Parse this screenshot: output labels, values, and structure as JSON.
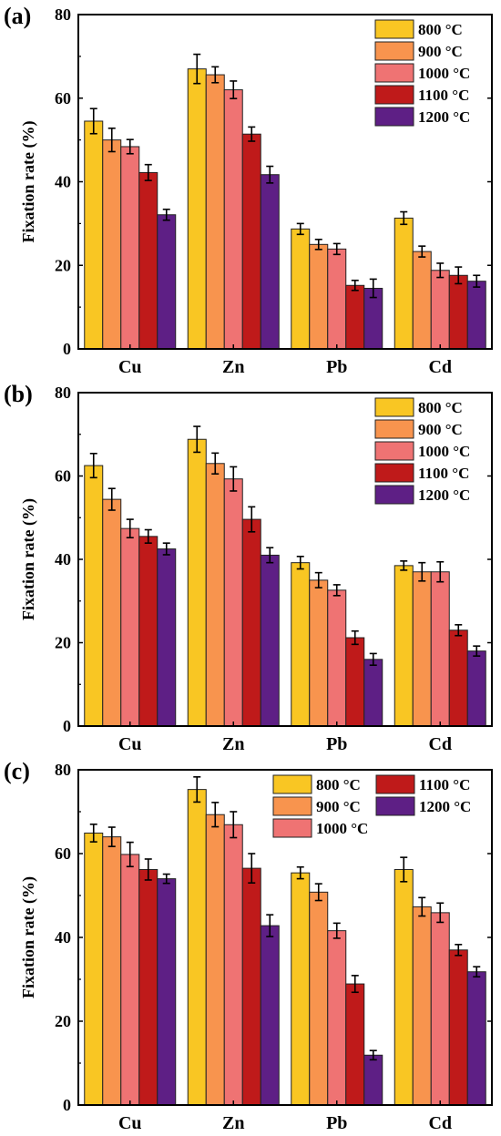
{
  "chart_data": [
    {
      "panel": "(a)",
      "type": "bar",
      "categories": [
        "Cu",
        "Zn",
        "Pb",
        "Cd"
      ],
      "ylabel": "Fixation rate (%)",
      "ylim": [
        0,
        80
      ],
      "yticks": [
        "0",
        "20",
        "40",
        "60",
        "80"
      ],
      "legend_position": "top-right",
      "series": [
        {
          "name": "800 °C",
          "color": "#F9C623",
          "values": [
            54.5,
            67.0,
            28.7,
            31.3
          ],
          "errors": [
            3.0,
            3.5,
            1.3,
            1.5
          ]
        },
        {
          "name": "900 °C",
          "color": "#F8944E",
          "values": [
            50.0,
            65.6,
            25.0,
            23.3
          ],
          "errors": [
            2.8,
            1.9,
            1.2,
            1.3
          ]
        },
        {
          "name": "1000 °C",
          "color": "#EF7373",
          "values": [
            48.4,
            62.0,
            23.9,
            18.8
          ],
          "errors": [
            1.7,
            2.1,
            1.3,
            1.7
          ]
        },
        {
          "name": "1100 °C",
          "color": "#BF1A1A",
          "values": [
            42.2,
            51.4,
            15.2,
            17.6
          ],
          "errors": [
            1.9,
            1.7,
            1.2,
            2.0
          ]
        },
        {
          "name": "1200 °C",
          "color": "#5E1F85",
          "values": [
            32.1,
            41.7,
            14.5,
            16.2
          ],
          "errors": [
            1.3,
            2.0,
            2.2,
            1.4
          ]
        }
      ]
    },
    {
      "panel": "(b)",
      "type": "bar",
      "categories": [
        "Cu",
        "Zn",
        "Pb",
        "Cd"
      ],
      "ylabel": "Fixation rate (%)",
      "ylim": [
        0,
        80
      ],
      "yticks": [
        "0",
        "20",
        "40",
        "60",
        "80"
      ],
      "legend_position": "top-right",
      "series": [
        {
          "name": "800 °C",
          "color": "#F9C623",
          "values": [
            62.5,
            68.8,
            39.2,
            38.5
          ],
          "errors": [
            2.9,
            3.1,
            1.5,
            1.1
          ]
        },
        {
          "name": "900 °C",
          "color": "#F8944E",
          "values": [
            54.4,
            63.0,
            35.0,
            37.0
          ],
          "errors": [
            2.6,
            2.5,
            1.8,
            2.2
          ]
        },
        {
          "name": "1000 °C",
          "color": "#EF7373",
          "values": [
            47.4,
            59.3,
            32.6,
            37.0
          ],
          "errors": [
            2.2,
            2.9,
            1.3,
            2.4
          ]
        },
        {
          "name": "1100 °C",
          "color": "#BF1A1A",
          "values": [
            45.5,
            49.6,
            21.2,
            23.0
          ],
          "errors": [
            1.6,
            3.0,
            1.6,
            1.3
          ]
        },
        {
          "name": "1200 °C",
          "color": "#5E1F85",
          "values": [
            42.5,
            41.0,
            16.0,
            18.0
          ],
          "errors": [
            1.4,
            1.8,
            1.4,
            1.2
          ]
        }
      ]
    },
    {
      "panel": "(c)",
      "type": "bar",
      "categories": [
        "Cu",
        "Zn",
        "Pb",
        "Cd"
      ],
      "ylabel": "Fixation rate (%)",
      "ylim": [
        0,
        80
      ],
      "yticks": [
        "0",
        "20",
        "40",
        "60",
        "80"
      ],
      "legend_position": "top-right, two columns",
      "series": [
        {
          "name": "800 °C",
          "color": "#F9C623",
          "values": [
            64.9,
            75.3,
            55.4,
            56.2
          ],
          "errors": [
            2.1,
            3.0,
            1.4,
            2.9
          ]
        },
        {
          "name": "900 °C",
          "color": "#F8944E",
          "values": [
            64.0,
            69.3,
            50.8,
            47.3
          ],
          "errors": [
            2.3,
            2.9,
            2.0,
            2.2
          ]
        },
        {
          "name": "1000 °C",
          "color": "#EF7373",
          "values": [
            59.8,
            66.9,
            41.6,
            45.9
          ],
          "errors": [
            2.9,
            3.1,
            1.8,
            2.3
          ]
        },
        {
          "name": "1100 °C",
          "color": "#BF1A1A",
          "values": [
            56.2,
            56.5,
            28.9,
            37.0
          ],
          "errors": [
            2.5,
            3.5,
            2.0,
            1.3
          ]
        },
        {
          "name": "1200 °C",
          "color": "#5E1F85",
          "values": [
            54.0,
            42.8,
            11.9,
            31.8
          ],
          "errors": [
            1.1,
            2.6,
            1.1,
            1.2
          ]
        }
      ]
    }
  ]
}
